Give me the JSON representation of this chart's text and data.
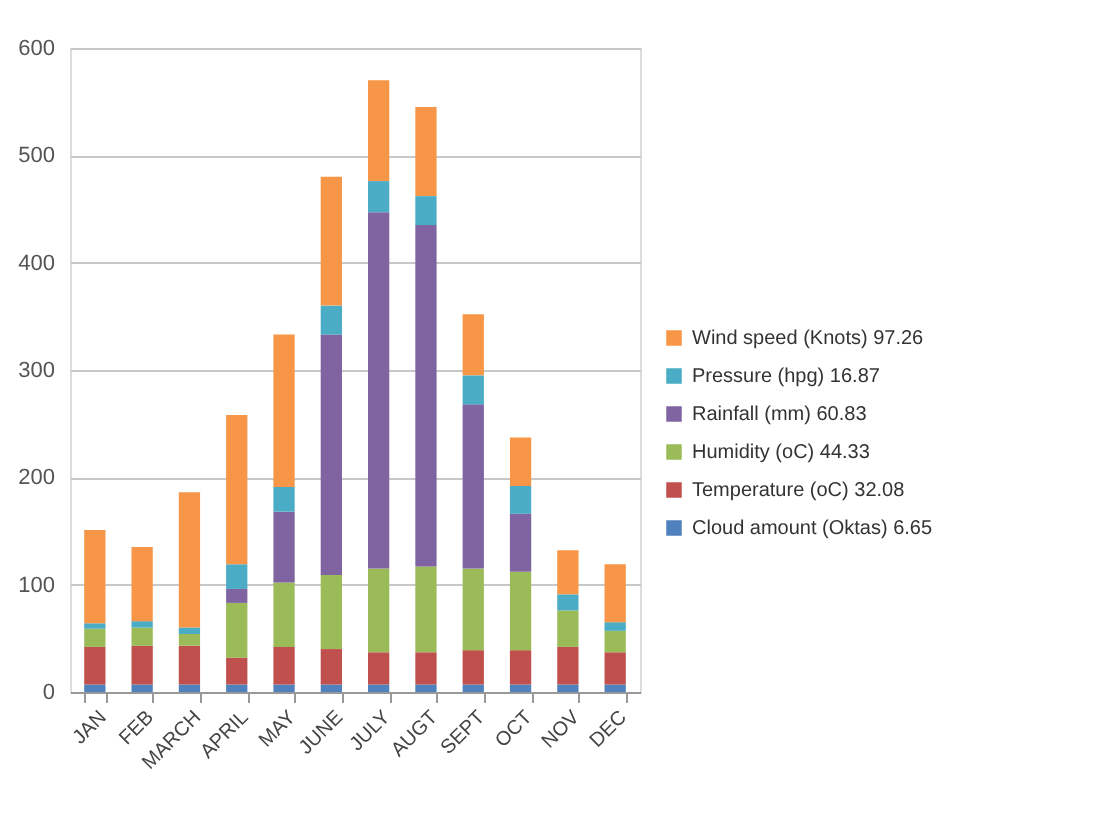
{
  "chart_data": {
    "type": "bar",
    "stacked": true,
    "categories": [
      "JAN",
      "FEB",
      "MARCH",
      "APRIL",
      "MAY",
      "JUNE",
      "JULY",
      "AUGT",
      "SEPT",
      "OCT",
      "NOV",
      "DEC"
    ],
    "series": [
      {
        "name": "Cloud amount (Oktas) 6.65",
        "color": "#4f81bd",
        "values": [
          7,
          7,
          7,
          7,
          7,
          7,
          7,
          7,
          7,
          7,
          7,
          7
        ]
      },
      {
        "name": "Temperature (oC) 32.08",
        "color": "#c0504d",
        "values": [
          35,
          36,
          36,
          25,
          35,
          33,
          30,
          30,
          32,
          32,
          35,
          30
        ]
      },
      {
        "name": "Humidity (oC) 44.33",
        "color": "#9bbb59",
        "values": [
          17,
          17,
          11,
          51,
          60,
          69,
          78,
          80,
          76,
          73,
          34,
          20
        ]
      },
      {
        "name": "Rainfall (mm) 60.83",
        "color": "#8064a2",
        "values": [
          0,
          0,
          0,
          13,
          66,
          224,
          332,
          318,
          153,
          54,
          0,
          0
        ]
      },
      {
        "name": "Pressure (hpg) 16.87",
        "color": "#4bacc6",
        "values": [
          5,
          6,
          6,
          23,
          23,
          27,
          29,
          27,
          27,
          26,
          15,
          8
        ]
      },
      {
        "name": "Wind speed (Knots) 97.26",
        "color": "#f79646",
        "values": [
          87,
          69,
          126,
          139,
          142,
          120,
          94,
          83,
          57,
          45,
          41,
          54
        ]
      }
    ],
    "ylim": [
      0,
      600
    ],
    "yticks": [
      0,
      100,
      200,
      300,
      400,
      500,
      600
    ],
    "grid": "y",
    "legend": "right"
  }
}
